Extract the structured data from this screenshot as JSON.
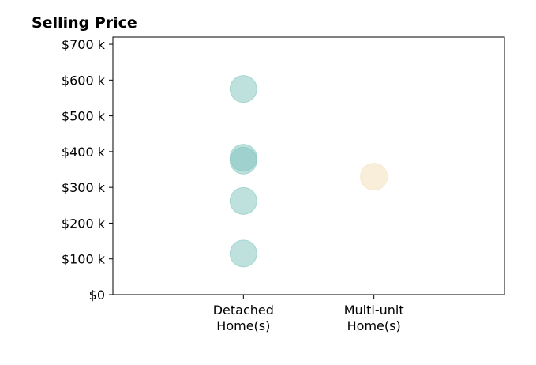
{
  "chart_data": {
    "type": "scatter",
    "title": "Selling Price",
    "xlabel": "",
    "ylabel": "",
    "categories": [
      [
        "Detached",
        "Home(s)"
      ],
      [
        "Multi-unit",
        "Home(s)"
      ]
    ],
    "y_ticks": [
      {
        "value": 0,
        "label": "$0"
      },
      {
        "value": 100000,
        "label": "$100 k"
      },
      {
        "value": 200000,
        "label": "$200 k"
      },
      {
        "value": 300000,
        "label": "$300 k"
      },
      {
        "value": 400000,
        "label": "$400 k"
      },
      {
        "value": 500000,
        "label": "$500 k"
      },
      {
        "value": 600000,
        "label": "$600 k"
      },
      {
        "value": 700000,
        "label": "$700 k"
      }
    ],
    "ylim": [
      0,
      720000
    ],
    "xlim": [
      -1,
      2
    ],
    "grid": false,
    "series": [
      {
        "category_index": 0,
        "color": "#7fc4bd",
        "values": [
          575000,
          383000,
          375000,
          262000,
          115000
        ]
      },
      {
        "category_index": 1,
        "color": "#f4deb3",
        "values": [
          330000
        ]
      }
    ]
  }
}
